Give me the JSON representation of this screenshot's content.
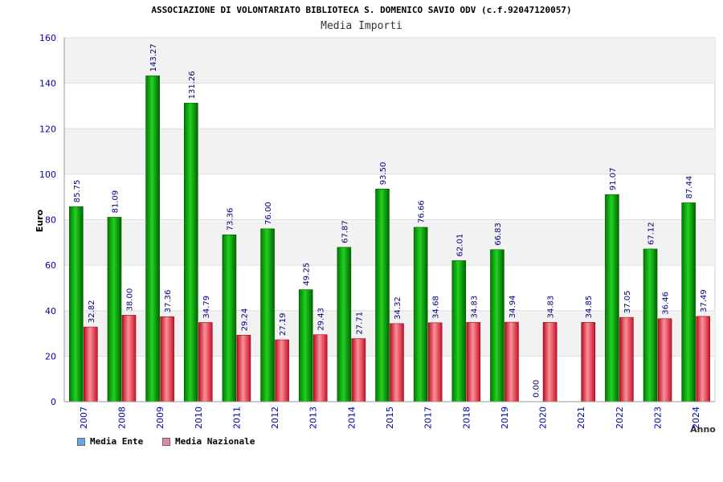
{
  "chart_data": {
    "type": "bar",
    "title": "ASSOCIAZIONE DI VOLONTARIATO BIBLIOTECA S. DOMENICO SAVIO ODV (c.f.92047120057)",
    "subtitle": "Media Importi",
    "xlabel": "Anno",
    "ylabel": "Euro",
    "ylim": [
      0,
      160
    ],
    "yticks": [
      0,
      20,
      40,
      60,
      80,
      100,
      120,
      140,
      160
    ],
    "grid": "horizontal bands",
    "legend_position": "bottom-left",
    "categories": [
      "2007",
      "2008",
      "2009",
      "2010",
      "2011",
      "2012",
      "2013",
      "2014",
      "2015",
      "2017",
      "2018",
      "2019",
      "2020",
      "2021",
      "2022",
      "2023",
      "2024"
    ],
    "series": [
      {
        "name": "Media Ente",
        "color": "#00b400",
        "legend_color": "#6aa6e8",
        "values": [
          85.75,
          81.09,
          143.27,
          131.26,
          73.36,
          76.0,
          49.25,
          67.87,
          93.5,
          76.66,
          62.01,
          66.83,
          0.0,
          null,
          91.07,
          67.12,
          87.44
        ],
        "labels": [
          "85.75",
          "81.09",
          "143.27",
          "131.26",
          "73.36",
          "76.00",
          "49.25",
          "67.87",
          "93.50",
          "76.66",
          "62.01",
          "66.83",
          "0.00",
          "",
          "91.07",
          "67.12",
          "87.44"
        ]
      },
      {
        "name": "Media Nazionale",
        "color": "#e8283c",
        "legend_color": "#e880b0",
        "values": [
          32.82,
          38.0,
          37.36,
          34.79,
          29.24,
          27.19,
          29.43,
          27.71,
          34.32,
          34.68,
          34.83,
          34.94,
          34.83,
          34.85,
          37.05,
          36.46,
          37.49
        ],
        "labels": [
          "32.82",
          "38.00",
          "37.36",
          "34.79",
          "29.24",
          "27.19",
          "29.43",
          "27.71",
          "34.32",
          "34.68",
          "34.83",
          "34.94",
          "34.83",
          "34.85",
          "37.05",
          "36.46",
          "37.49"
        ]
      }
    ]
  }
}
